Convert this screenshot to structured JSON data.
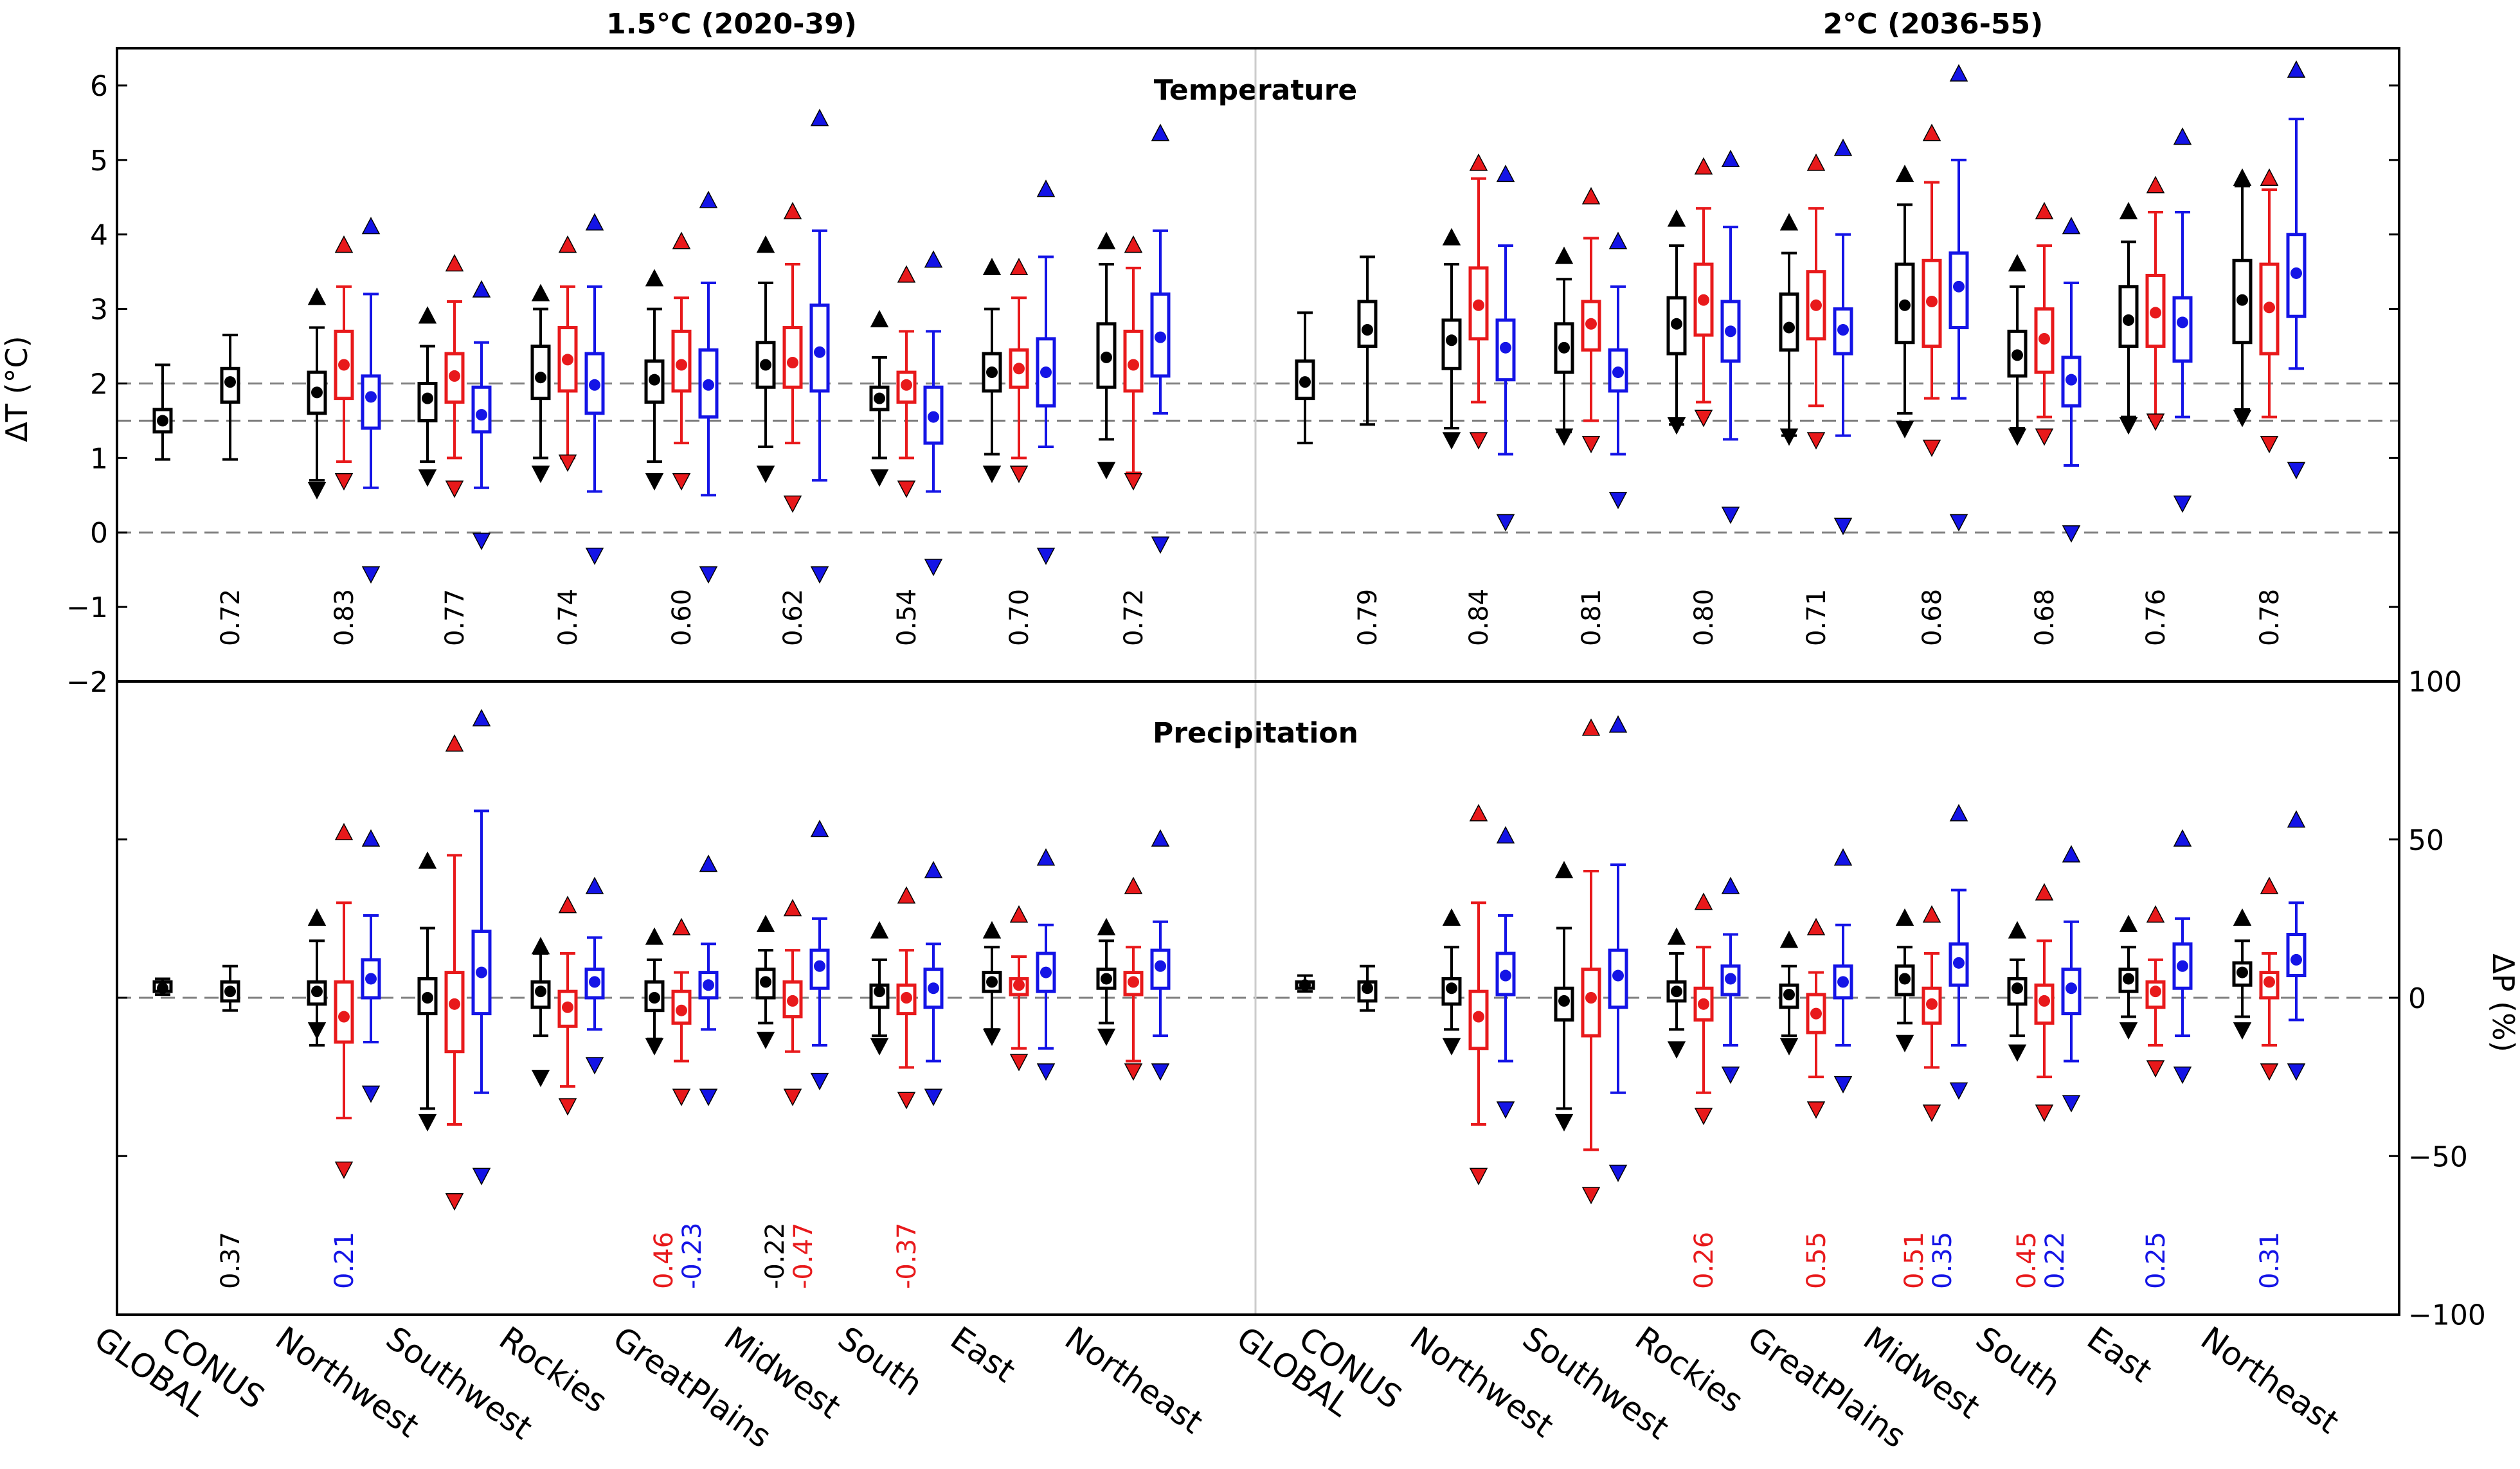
{
  "chart_data": {
    "type": "box",
    "titles": {
      "left": "1.5°C (2020-39)",
      "right": "2°C (2036-55)"
    },
    "panels": [
      {
        "name": "Temperature",
        "ylabel": "ΔT (°C)",
        "ylim": [
          -2,
          6.5
        ],
        "yticks": [
          -2,
          -1,
          0,
          1,
          2,
          3,
          4,
          5,
          6
        ],
        "ref_lines": [
          2,
          1.5,
          0
        ]
      },
      {
        "name": "Precipitation",
        "ylabel": "ΔP (%)",
        "ylim": [
          -100,
          100
        ],
        "yticks": [
          -100,
          -50,
          0,
          50,
          100
        ],
        "ref_lines": [
          0
        ]
      }
    ],
    "regions": [
      "GLOBAL",
      "CONUS",
      "Northwest",
      "Southwest",
      "Rockies",
      "GreatPlains",
      "Midwest",
      "South",
      "East",
      "Northeast"
    ],
    "series_colors": {
      "all": "#000000",
      "red": "#e8191b",
      "blue": "#1414e6"
    },
    "temperature": {
      "w1_5": {
        "GLOBAL": {
          "all": [
            0.98,
            1.35,
            1.5,
            1.65,
            2.25
          ]
        },
        "CONUS": {
          "all": [
            0.98,
            1.75,
            2.02,
            2.2,
            2.65
          ]
        },
        "Northwest": {
          "all": [
            0.7,
            1.6,
            1.88,
            2.15,
            2.75,
            3.15,
            0.58
          ],
          "red": [
            0.95,
            1.8,
            2.25,
            2.7,
            3.3,
            3.85,
            0.7
          ],
          "blue": [
            0.6,
            1.4,
            1.82,
            2.1,
            3.2,
            4.1,
            -0.55
          ]
        },
        "Southwest": {
          "all": [
            0.95,
            1.5,
            1.8,
            2.0,
            2.5,
            2.9,
            0.75
          ],
          "red": [
            1.0,
            1.75,
            2.1,
            2.4,
            3.1,
            3.6,
            0.6
          ],
          "blue": [
            0.6,
            1.35,
            1.58,
            1.95,
            2.55,
            3.25,
            -0.1
          ]
        },
        "Rockies": {
          "all": [
            1.0,
            1.8,
            2.08,
            2.5,
            3.0,
            3.2,
            0.8
          ],
          "red": [
            1.0,
            1.9,
            2.32,
            2.75,
            3.3,
            3.85,
            0.95
          ],
          "blue": [
            0.55,
            1.6,
            1.98,
            2.4,
            3.3,
            4.15,
            -0.3
          ]
        },
        "GreatPlains": {
          "all": [
            0.95,
            1.75,
            2.05,
            2.3,
            3.0,
            3.4,
            0.7
          ],
          "red": [
            1.2,
            1.9,
            2.25,
            2.7,
            3.15,
            3.9,
            0.7
          ],
          "blue": [
            0.5,
            1.55,
            1.98,
            2.45,
            3.35,
            4.45,
            -0.55
          ]
        },
        "Midwest": {
          "all": [
            1.15,
            1.95,
            2.25,
            2.55,
            3.35,
            3.85,
            0.8
          ],
          "red": [
            1.2,
            1.95,
            2.28,
            2.75,
            3.6,
            4.3,
            0.4
          ],
          "blue": [
            0.7,
            1.9,
            2.42,
            3.05,
            4.05,
            5.55,
            -0.55
          ]
        },
        "South": {
          "all": [
            1.0,
            1.65,
            1.8,
            1.95,
            2.35,
            2.85,
            0.75
          ],
          "red": [
            1.0,
            1.75,
            1.98,
            2.15,
            2.7,
            3.45,
            0.6
          ],
          "blue": [
            0.55,
            1.2,
            1.55,
            1.95,
            2.7,
            3.65,
            -0.45
          ]
        },
        "East": {
          "all": [
            1.05,
            1.9,
            2.15,
            2.4,
            3.0,
            3.55,
            0.8
          ],
          "red": [
            1.0,
            1.95,
            2.2,
            2.45,
            3.15,
            3.55,
            0.8
          ],
          "blue": [
            1.15,
            1.7,
            2.15,
            2.6,
            3.7,
            4.6,
            -0.3
          ]
        },
        "Northeast": {
          "all": [
            1.25,
            1.95,
            2.35,
            2.8,
            3.6,
            3.9,
            0.85
          ],
          "red": [
            0.8,
            1.9,
            2.25,
            2.7,
            3.55,
            3.85,
            0.7
          ],
          "blue": [
            1.6,
            2.1,
            2.62,
            3.2,
            4.05,
            5.35,
            -0.15
          ]
        }
      },
      "w2": {
        "GLOBAL": {
          "all": [
            1.2,
            1.8,
            2.02,
            2.3,
            2.95
          ]
        },
        "CONUS": {
          "all": [
            1.45,
            2.5,
            2.72,
            3.1,
            3.7
          ]
        },
        "Northwest": {
          "all": [
            1.4,
            2.2,
            2.58,
            2.85,
            3.6,
            3.95,
            1.25
          ],
          "red": [
            1.75,
            2.6,
            3.05,
            3.55,
            4.75,
            4.95,
            1.25
          ],
          "blue": [
            1.05,
            2.05,
            2.48,
            2.85,
            3.85,
            4.8,
            0.15
          ]
        },
        "Southwest": {
          "all": [
            1.35,
            2.15,
            2.48,
            2.8,
            3.4,
            3.7,
            1.3
          ],
          "red": [
            1.5,
            2.45,
            2.8,
            3.1,
            3.95,
            4.5,
            1.2
          ],
          "blue": [
            1.05,
            1.9,
            2.15,
            2.45,
            3.3,
            3.9,
            0.45
          ]
        },
        "Rockies": {
          "all": [
            1.45,
            2.4,
            2.8,
            3.15,
            3.85,
            4.2,
            1.45
          ],
          "red": [
            1.75,
            2.65,
            3.12,
            3.6,
            4.35,
            4.9,
            1.55
          ],
          "blue": [
            1.25,
            2.3,
            2.7,
            3.1,
            4.1,
            5.0,
            0.25
          ]
        },
        "GreatPlains": {
          "all": [
            1.3,
            2.45,
            2.75,
            3.2,
            3.75,
            4.15,
            1.3
          ],
          "red": [
            1.7,
            2.6,
            3.05,
            3.5,
            4.35,
            4.95,
            1.25
          ],
          "blue": [
            1.3,
            2.4,
            2.72,
            3.0,
            4.0,
            5.15,
            0.1
          ]
        },
        "Midwest": {
          "all": [
            1.6,
            2.55,
            3.05,
            3.6,
            4.4,
            4.8,
            1.4
          ],
          "red": [
            1.8,
            2.5,
            3.1,
            3.65,
            4.7,
            5.35,
            1.15
          ],
          "blue": [
            1.8,
            2.75,
            3.3,
            3.75,
            5.0,
            6.15,
            0.15
          ]
        },
        "South": {
          "all": [
            1.4,
            2.1,
            2.38,
            2.7,
            3.3,
            3.6,
            1.3
          ],
          "red": [
            1.55,
            2.15,
            2.6,
            3.0,
            3.85,
            4.3,
            1.3
          ],
          "blue": [
            0.9,
            1.7,
            2.05,
            2.35,
            3.35,
            4.1,
            0.0
          ]
        },
        "East": {
          "all": [
            1.55,
            2.5,
            2.85,
            3.3,
            3.9,
            4.3,
            1.45
          ],
          "red": [
            1.55,
            2.5,
            2.95,
            3.45,
            4.3,
            4.65,
            1.5
          ],
          "blue": [
            1.55,
            2.3,
            2.82,
            3.15,
            4.3,
            5.3,
            0.4
          ]
        },
        "Northeast": {
          "all": [
            1.65,
            2.55,
            3.12,
            3.65,
            4.65,
            4.75,
            1.55
          ],
          "red": [
            1.55,
            2.4,
            3.02,
            3.6,
            4.6,
            4.75,
            1.2
          ],
          "blue": [
            2.2,
            2.9,
            3.48,
            4.0,
            5.55,
            6.2,
            0.85
          ]
        }
      }
    },
    "precipitation": {
      "w1_5": {
        "GLOBAL": {
          "all": [
            1,
            2,
            3,
            5,
            6
          ]
        },
        "CONUS": {
          "all": [
            -4,
            -1,
            2,
            5,
            10
          ]
        },
        "Northwest": {
          "all": [
            -15,
            -2,
            2,
            5,
            18,
            25,
            -10
          ],
          "red": [
            -38,
            -14,
            -6,
            5,
            30,
            52,
            -54
          ],
          "blue": [
            -14,
            0,
            6,
            12,
            26,
            50,
            -30
          ]
        },
        "Southwest": {
          "all": [
            -35,
            -5,
            0,
            6,
            22,
            43,
            -39
          ],
          "red": [
            -40,
            -17,
            -2,
            8,
            45,
            80,
            -64
          ],
          "blue": [
            -30,
            -5,
            8,
            21,
            59,
            88,
            -56
          ]
        },
        "Rockies": {
          "all": [
            -12,
            -3,
            2,
            5,
            14,
            16,
            -25
          ],
          "red": [
            -28,
            -9,
            -3,
            2,
            14,
            29,
            -34
          ],
          "blue": [
            -10,
            0,
            5,
            9,
            19,
            35,
            -21
          ]
        },
        "GreatPlains": {
          "all": [
            -13,
            -4,
            0,
            5,
            12,
            19,
            -15
          ],
          "red": [
            -20,
            -8,
            -4,
            2,
            8,
            22,
            -31
          ],
          "blue": [
            -10,
            0,
            4,
            8,
            17,
            42,
            -31
          ]
        },
        "Midwest": {
          "all": [
            -8,
            0,
            5,
            9,
            15,
            23,
            -13
          ],
          "red": [
            -17,
            -6,
            -1,
            5,
            15,
            28,
            -31
          ],
          "blue": [
            -15,
            3,
            10,
            15,
            25,
            53,
            -26
          ]
        },
        "South": {
          "all": [
            -12,
            -3,
            2,
            4,
            12,
            21,
            -15
          ],
          "red": [
            -22,
            -5,
            0,
            4,
            15,
            32,
            -32
          ],
          "blue": [
            -20,
            -3,
            3,
            9,
            17,
            40,
            -31
          ]
        },
        "East": {
          "all": [
            -10,
            2,
            5,
            8,
            16,
            21,
            -12
          ],
          "red": [
            -16,
            1,
            4,
            6,
            13,
            26,
            -20
          ],
          "blue": [
            -16,
            2,
            8,
            14,
            23,
            44,
            -23
          ]
        },
        "Northeast": {
          "all": [
            -8,
            3,
            6,
            9,
            18,
            22,
            -12
          ],
          "red": [
            -20,
            1,
            5,
            8,
            16,
            35,
            -23
          ],
          "blue": [
            -12,
            3,
            10,
            15,
            24,
            50,
            -23
          ]
        }
      },
      "w2": {
        "GLOBAL": {
          "all": [
            2,
            3,
            4,
            5,
            7
          ]
        },
        "CONUS": {
          "all": [
            -4,
            -1,
            3,
            5,
            10
          ]
        },
        "Northwest": {
          "all": [
            -10,
            -2,
            3,
            6,
            16,
            25,
            -15
          ],
          "red": [
            -40,
            -16,
            -6,
            2,
            30,
            58,
            -56
          ],
          "blue": [
            -20,
            1,
            7,
            14,
            26,
            51,
            -35
          ]
        },
        "Southwest": {
          "all": [
            -35,
            -7,
            -1,
            3,
            22,
            40,
            -39
          ],
          "red": [
            -48,
            -12,
            0,
            9,
            40,
            85,
            -62
          ],
          "blue": [
            -30,
            -3,
            7,
            15,
            42,
            86,
            -55
          ]
        },
        "Rockies": {
          "all": [
            -10,
            -1,
            2,
            5,
            14,
            19,
            -16
          ],
          "red": [
            -30,
            -7,
            -2,
            3,
            16,
            30,
            -37
          ],
          "blue": [
            -15,
            1,
            6,
            10,
            20,
            35,
            -24
          ]
        },
        "GreatPlains": {
          "all": [
            -12,
            -3,
            1,
            4,
            10,
            18,
            -15
          ],
          "red": [
            -25,
            -11,
            -5,
            1,
            8,
            22,
            -35
          ],
          "blue": [
            -15,
            0,
            5,
            10,
            23,
            44,
            -27
          ]
        },
        "Midwest": {
          "all": [
            -8,
            1,
            6,
            10,
            16,
            25,
            -14
          ],
          "red": [
            -22,
            -8,
            -2,
            3,
            14,
            26,
            -36
          ],
          "blue": [
            -15,
            4,
            11,
            17,
            34,
            58,
            -29
          ]
        },
        "South": {
          "all": [
            -12,
            -2,
            3,
            6,
            12,
            21,
            -17
          ],
          "red": [
            -25,
            -8,
            -1,
            4,
            18,
            33,
            -36
          ],
          "blue": [
            -20,
            -5,
            3,
            9,
            24,
            45,
            -33
          ]
        },
        "East": {
          "all": [
            -6,
            2,
            6,
            9,
            16,
            23,
            -10
          ],
          "red": [
            -15,
            -3,
            2,
            5,
            12,
            26,
            -22
          ],
          "blue": [
            -12,
            3,
            10,
            17,
            25,
            50,
            -24
          ]
        },
        "Northeast": {
          "all": [
            -6,
            4,
            8,
            11,
            18,
            25,
            -10
          ],
          "red": [
            -15,
            0,
            5,
            8,
            14,
            35,
            -23
          ],
          "blue": [
            -7,
            7,
            12,
            20,
            30,
            56,
            -23
          ]
        }
      }
    },
    "temp_corr": {
      "w1_5": [
        "",
        "0.72",
        "0.83",
        "0.77",
        "0.74",
        "0.60",
        "0.62",
        "0.54",
        "0.70",
        "0.72"
      ],
      "w2": [
        "",
        "0.79",
        "0.84",
        "0.81",
        "0.80",
        "0.71",
        "0.68",
        "0.68",
        "0.76",
        "0.78"
      ]
    },
    "precip_corr": {
      "w1_5": [
        [],
        [
          {
            "v": "0.37",
            "c": "all"
          }
        ],
        [
          {
            "v": "0.21",
            "c": "blue"
          }
        ],
        [],
        [],
        [
          {
            "v": "0.46",
            "c": "red"
          },
          {
            "v": "-0.23",
            "c": "blue"
          }
        ],
        [
          {
            "v": "-0.22",
            "c": "all"
          },
          {
            "v": "-0.47",
            "c": "red"
          }
        ],
        [
          {
            "v": "-0.37",
            "c": "red"
          }
        ],
        [],
        []
      ],
      "w2": [
        [],
        [],
        [],
        [],
        [
          {
            "v": "0.26",
            "c": "red"
          }
        ],
        [
          {
            "v": "0.55",
            "c": "red"
          }
        ],
        [
          {
            "v": "0.51",
            "c": "red"
          },
          {
            "v": "0.35",
            "c": "blue"
          }
        ],
        [
          {
            "v": "0.45",
            "c": "red"
          },
          {
            "v": "0.22",
            "c": "blue"
          }
        ],
        [
          {
            "v": "0.25",
            "c": "blue"
          }
        ],
        [
          {
            "v": "0.31",
            "c": "blue"
          }
        ]
      ]
    }
  }
}
